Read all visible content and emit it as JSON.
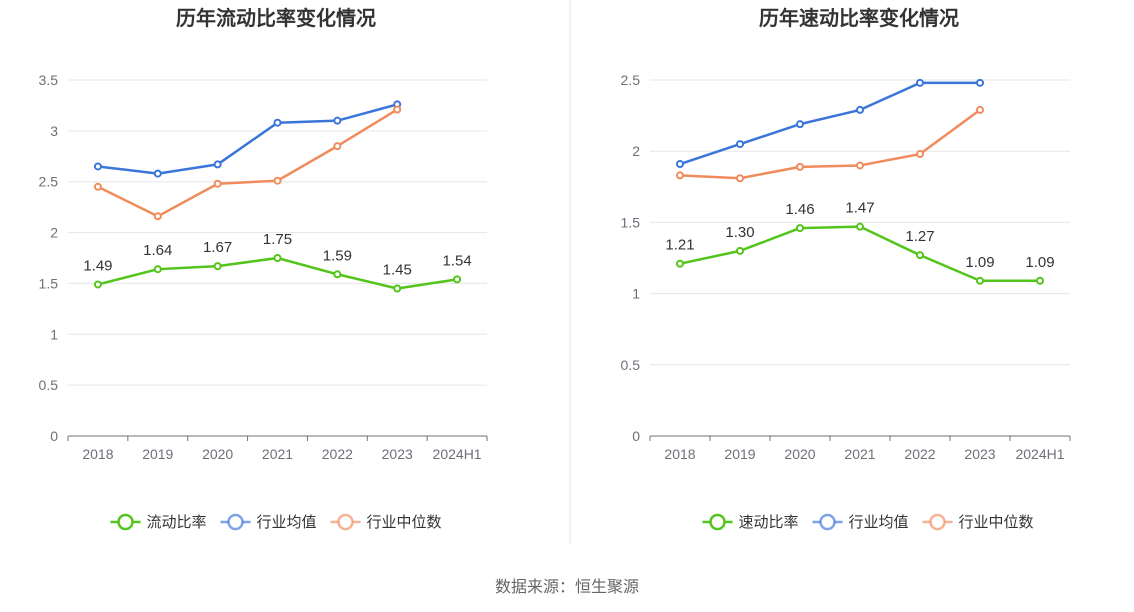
{
  "source_text": "数据来源：恒生聚源",
  "chart_data": [
    {
      "type": "line",
      "title": "历年流动比率变化情况",
      "categories": [
        "2018",
        "2019",
        "2020",
        "2021",
        "2022",
        "2023",
        "2024H1"
      ],
      "ylim": [
        0,
        3.5
      ],
      "yticks": [
        "0",
        "0.5",
        "1",
        "1.5",
        "2",
        "2.5",
        "3",
        "3.5"
      ],
      "grid": true,
      "legend_position": "bottom-center",
      "series": [
        {
          "name": "流动比率",
          "color": "#52c41a",
          "values": [
            1.49,
            1.64,
            1.67,
            1.75,
            1.59,
            1.45,
            1.54
          ],
          "labels": [
            "1.49",
            "1.64",
            "1.67",
            "1.75",
            "1.59",
            "1.45",
            "1.54"
          ]
        },
        {
          "name": "行业均值",
          "color": "#3a75d9",
          "values": [
            2.65,
            2.58,
            2.67,
            3.08,
            3.1,
            3.26,
            null
          ]
        },
        {
          "name": "行业中位数",
          "color": "#f08b5b",
          "values": [
            2.45,
            2.16,
            2.48,
            2.51,
            2.85,
            3.21,
            null
          ]
        }
      ]
    },
    {
      "type": "line",
      "title": "历年速动比率变化情况",
      "categories": [
        "2018",
        "2019",
        "2020",
        "2021",
        "2022",
        "2023",
        "2024H1"
      ],
      "ylim": [
        0,
        2.5
      ],
      "yticks": [
        "0",
        "0.5",
        "1",
        "1.5",
        "2",
        "2.5"
      ],
      "grid": true,
      "legend_position": "bottom-center",
      "series": [
        {
          "name": "速动比率",
          "color": "#52c41a",
          "values": [
            1.21,
            1.3,
            1.46,
            1.47,
            1.27,
            1.09,
            1.09
          ],
          "labels": [
            "1.21",
            "1.30",
            "1.46",
            "1.47",
            "1.27",
            "1.09",
            "1.09"
          ]
        },
        {
          "name": "行业均值",
          "color": "#3a75d9",
          "values": [
            1.91,
            2.05,
            2.19,
            2.29,
            2.48,
            2.48,
            null
          ]
        },
        {
          "name": "行业中位数",
          "color": "#f08b5b",
          "values": [
            1.83,
            1.81,
            1.89,
            1.9,
            1.98,
            2.29,
            null
          ]
        }
      ]
    }
  ]
}
